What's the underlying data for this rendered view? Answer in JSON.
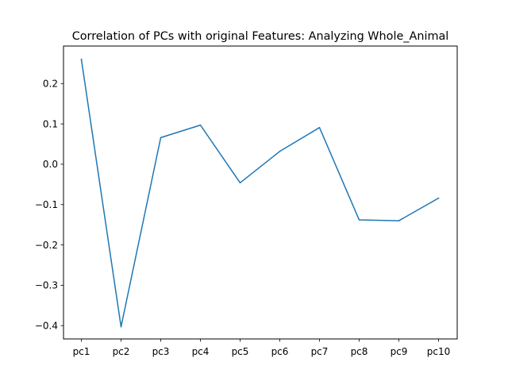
{
  "chart_data": {
    "type": "line",
    "title": "Correlation of PCs with original Features: Analyzing Whole_Animal",
    "xlabel": "",
    "ylabel": "",
    "categories": [
      "pc1",
      "pc2",
      "pc3",
      "pc4",
      "pc5",
      "pc6",
      "pc7",
      "pc8",
      "pc9",
      "pc10"
    ],
    "series": [
      {
        "values": [
          0.26,
          -0.403,
          0.066,
          0.097,
          -0.046,
          0.032,
          0.091,
          -0.138,
          -0.14,
          -0.084
        ],
        "color": "#1f77b4"
      }
    ],
    "ylim": [
      -0.433,
      0.293
    ],
    "yticks": [
      0.2,
      0.1,
      0.0,
      -0.1,
      -0.2,
      -0.3,
      -0.4
    ],
    "ytick_labels": [
      "0.2",
      "0.1",
      "0.0",
      "−0.1",
      "−0.2",
      "−0.3",
      "−0.4"
    ],
    "grid": false,
    "legend": "none"
  }
}
